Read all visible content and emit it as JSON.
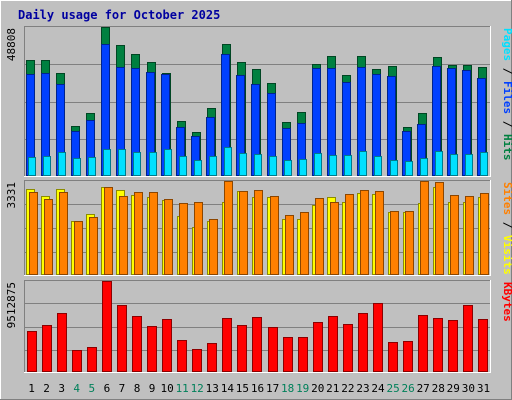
{
  "chart_data": {
    "type": "bar",
    "title": "Daily usage for October 2025",
    "days": [
      "1",
      "2",
      "3",
      "4",
      "5",
      "6",
      "7",
      "8",
      "9",
      "10",
      "11",
      "12",
      "13",
      "14",
      "15",
      "16",
      "17",
      "18",
      "19",
      "20",
      "21",
      "22",
      "23",
      "24",
      "25",
      "26",
      "27",
      "28",
      "29",
      "30",
      "31"
    ],
    "weekend_days": [
      "4",
      "5",
      "11",
      "12",
      "18",
      "19",
      "25",
      "26"
    ],
    "panels": [
      {
        "id": "pages-files-hits",
        "ymax": 48808,
        "ymax_label": "48808",
        "ylabel_parts": [
          {
            "text": "Pages",
            "color": "#00e0ff"
          },
          {
            "text": " / ",
            "color": "#000000"
          },
          {
            "text": "Files",
            "color": "#0040ff"
          },
          {
            "text": " / ",
            "color": "#000000"
          },
          {
            "text": "Hits",
            "color": "#008040"
          }
        ],
        "series": [
          {
            "name": "Hits",
            "color": "#008040",
            "values": [
              38000,
              38100,
              33700,
              16400,
              20600,
              48800,
              43000,
              40000,
              37500,
              33700,
              17900,
              14400,
              22300,
              43300,
              37500,
              35100,
              30500,
              17600,
              21100,
              36700,
              39400,
              33200,
              39400,
              35000,
              36000,
              16100,
              20600,
              38900,
              36300,
              36500,
              35700
            ]
          },
          {
            "name": "Files",
            "color": "#0040ff",
            "values": [
              33300,
              33700,
              30000,
              14900,
              18300,
              43400,
              35600,
              35500,
              34100,
              33500,
              15900,
              13100,
              19300,
              40000,
              33100,
              30100,
              27200,
              15700,
              17400,
              35500,
              35500,
              30800,
              35700,
              33300,
              32600,
              14900,
              16900,
              36000,
              35500,
              34600,
              32200
            ]
          },
          {
            "name": "Pages",
            "color": "#00e0ff",
            "values": [
              6200,
              6500,
              7900,
              5800,
              6200,
              8700,
              8900,
              7900,
              7900,
              8800,
              6600,
              5100,
              6400,
              9500,
              7400,
              7100,
              6500,
              5200,
              5700,
              7400,
              6900,
              6900,
              8100,
              6500,
              5400,
              4900,
              5900,
              8100,
              7300,
              7100,
              8000
            ]
          }
        ]
      },
      {
        "id": "sites-visits",
        "ymax": 3331,
        "ymax_label": "3331",
        "ylabel_parts": [
          {
            "text": "Sites",
            "color": "#ff8000"
          },
          {
            "text": " / ",
            "color": "#000000"
          },
          {
            "text": "Visits",
            "color": "#ffff00"
          }
        ],
        "series": [
          {
            "name": "Visits",
            "color": "#ffff00",
            "values": [
              3050,
              2800,
              3050,
              1900,
              2150,
              3130,
              3000,
              2850,
              2750,
              2650,
              2100,
              1690,
              1930,
              2600,
              2960,
              2770,
              2750,
              2000,
              2000,
              2480,
              2780,
              2580,
              2900,
              2860,
              2230,
              2230,
              2550,
              3130,
              2580,
              2600,
              2750
            ]
          },
          {
            "name": "Sites",
            "color": "#ff8000",
            "values": [
              2950,
              2700,
              2950,
              1900,
              2050,
              3130,
              2800,
              2950,
              2950,
              2700,
              2550,
              2570,
              1970,
              3331,
              2960,
              3000,
              2800,
              2110,
              2220,
              2720,
              2580,
              2860,
              3000,
              2990,
              2260,
              2260,
              3331,
              3300,
              2840,
              2800,
              2900
            ]
          }
        ]
      },
      {
        "id": "kbytes",
        "ymax": 9512875,
        "ymax_label": "9512875",
        "ylabel_parts": [
          {
            "text": "KBytes",
            "color": "#ff0000"
          }
        ],
        "series": [
          {
            "name": "KBytes",
            "color": "#ff0000",
            "values": [
              4250000,
              4900000,
              6150000,
              2350000,
              2600000,
              9512875,
              7050000,
              5900000,
              4850000,
              5550000,
              3300000,
              2400000,
              3050000,
              5650000,
              4900000,
              5700000,
              4700000,
              3700000,
              3700000,
              5250000,
              5900000,
              5050000,
              6200000,
              7250000,
              3100000,
              3250000,
              5950000,
              5600000,
              5400000,
              7000000,
              5550000
            ]
          }
        ]
      }
    ]
  }
}
